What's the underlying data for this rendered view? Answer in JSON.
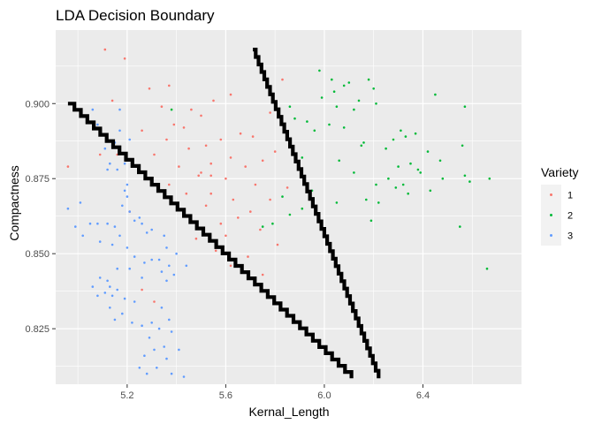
{
  "chart_data": {
    "type": "scatter",
    "title": "LDA Decision Boundary",
    "xlabel": "Kernal_Length",
    "ylabel": "Compactness",
    "xlim": [
      4.91,
      6.8
    ],
    "ylim": [
      0.8065,
      0.9245
    ],
    "x_ticks": [
      5.2,
      5.6,
      6.0,
      6.4
    ],
    "x_tick_labels": [
      "5.2",
      "5.6",
      "6.0",
      "6.4"
    ],
    "y_ticks": [
      0.825,
      0.85,
      0.875,
      0.9
    ],
    "y_tick_labels": [
      "0.825",
      "0.850",
      "0.875",
      "0.900"
    ],
    "grid": true,
    "legend": {
      "title": "Variety",
      "position": "right"
    },
    "series": [
      {
        "name": "1",
        "color": "#F8766D",
        "points": [
          [
            5.11,
            0.918
          ],
          [
            5.19,
            0.915
          ],
          [
            5.83,
            0.908
          ],
          [
            5.37,
            0.906
          ],
          [
            5.29,
            0.905
          ],
          [
            5.62,
            0.903
          ],
          [
            5.55,
            0.901
          ],
          [
            5.14,
            0.901
          ],
          [
            5.34,
            0.899
          ],
          [
            5.46,
            0.898
          ],
          [
            5.78,
            0.897
          ],
          [
            5.5,
            0.896
          ],
          [
            5.39,
            0.893
          ],
          [
            5.43,
            0.892
          ],
          [
            5.26,
            0.891
          ],
          [
            5.66,
            0.89
          ],
          [
            5.71,
            0.889
          ],
          [
            5.58,
            0.888
          ],
          [
            5.36,
            0.888
          ],
          [
            5.52,
            0.886
          ],
          [
            5.45,
            0.885
          ],
          [
            5.8,
            0.884
          ],
          [
            5.16,
            0.883
          ],
          [
            5.09,
            0.883
          ],
          [
            5.31,
            0.883
          ],
          [
            5.62,
            0.882
          ],
          [
            5.75,
            0.881
          ],
          [
            5.54,
            0.88
          ],
          [
            5.41,
            0.879
          ],
          [
            5.68,
            0.879
          ],
          [
            4.96,
            0.879
          ],
          [
            5.5,
            0.877
          ],
          [
            5.49,
            0.876
          ],
          [
            5.6,
            0.875
          ],
          [
            5.72,
            0.873
          ],
          [
            5.37,
            0.873
          ],
          [
            5.85,
            0.872
          ],
          [
            5.44,
            0.87
          ],
          [
            5.54,
            0.87
          ],
          [
            5.63,
            0.868
          ],
          [
            5.78,
            0.868
          ],
          [
            5.52,
            0.866
          ],
          [
            5.7,
            0.864
          ],
          [
            5.21,
            0.864
          ],
          [
            5.65,
            0.862
          ],
          [
            5.58,
            0.86
          ],
          [
            5.74,
            0.858
          ],
          [
            5.6,
            0.856
          ],
          [
            5.48,
            0.855
          ],
          [
            5.81,
            0.853
          ],
          [
            5.56,
            0.851
          ],
          [
            5.69,
            0.849
          ],
          [
            5.62,
            0.846
          ],
          [
            5.75,
            0.843
          ],
          [
            5.26,
            0.838
          ],
          [
            5.31,
            0.834
          ],
          [
            5.54,
            0.876
          ],
          [
            5.46,
            0.861
          ]
        ]
      },
      {
        "name": "2",
        "color": "#00BA38",
        "points": [
          [
            5.98,
            0.911
          ],
          [
            6.18,
            0.908
          ],
          [
            6.03,
            0.908
          ],
          [
            6.1,
            0.907
          ],
          [
            6.08,
            0.906
          ],
          [
            6.2,
            0.905
          ],
          [
            6.04,
            0.904
          ],
          [
            6.45,
            0.903
          ],
          [
            5.99,
            0.902
          ],
          [
            6.14,
            0.901
          ],
          [
            6.21,
            0.9
          ],
          [
            5.86,
            0.899
          ],
          [
            6.05,
            0.899
          ],
          [
            6.57,
            0.899
          ],
          [
            6.12,
            0.898
          ],
          [
            5.38,
            0.898
          ],
          [
            5.88,
            0.895
          ],
          [
            5.93,
            0.894
          ],
          [
            6.02,
            0.893
          ],
          [
            6.08,
            0.892
          ],
          [
            5.96,
            0.891
          ],
          [
            6.31,
            0.891
          ],
          [
            6.37,
            0.89
          ],
          [
            6.33,
            0.889
          ],
          [
            6.28,
            0.888
          ],
          [
            6.16,
            0.887
          ],
          [
            6.15,
            0.886
          ],
          [
            6.56,
            0.886
          ],
          [
            6.25,
            0.885
          ],
          [
            6.42,
            0.884
          ],
          [
            5.91,
            0.882
          ],
          [
            6.06,
            0.881
          ],
          [
            6.47,
            0.881
          ],
          [
            6.35,
            0.88
          ],
          [
            6.3,
            0.879
          ],
          [
            6.38,
            0.878
          ],
          [
            6.39,
            0.877
          ],
          [
            6.12,
            0.877
          ],
          [
            6.57,
            0.876
          ],
          [
            6.26,
            0.875
          ],
          [
            6.67,
            0.875
          ],
          [
            6.48,
            0.875
          ],
          [
            6.59,
            0.874
          ],
          [
            6.21,
            0.873
          ],
          [
            6.32,
            0.873
          ],
          [
            6.29,
            0.872
          ],
          [
            5.95,
            0.871
          ],
          [
            6.43,
            0.871
          ],
          [
            6.34,
            0.87
          ],
          [
            5.83,
            0.869
          ],
          [
            6.17,
            0.868
          ],
          [
            6.05,
            0.867
          ],
          [
            6.22,
            0.867
          ],
          [
            5.91,
            0.865
          ],
          [
            5.86,
            0.863
          ],
          [
            6.19,
            0.861
          ],
          [
            5.79,
            0.86
          ],
          [
            6.55,
            0.859
          ],
          [
            5.75,
            0.859
          ],
          [
            6.66,
            0.845
          ]
        ]
      },
      {
        "name": "3",
        "color": "#619CFF",
        "points": [
          [
            5.06,
            0.898
          ],
          [
            5.17,
            0.898
          ],
          [
            5.08,
            0.893
          ],
          [
            5.17,
            0.891
          ],
          [
            5.21,
            0.888
          ],
          [
            5.15,
            0.887
          ],
          [
            5.14,
            0.886
          ],
          [
            5.11,
            0.885
          ],
          [
            5.19,
            0.88
          ],
          [
            5.13,
            0.88
          ],
          [
            5.12,
            0.878
          ],
          [
            5.16,
            0.878
          ],
          [
            5.2,
            0.873
          ],
          [
            5.19,
            0.871
          ],
          [
            5.2,
            0.869
          ],
          [
            5.01,
            0.867
          ],
          [
            5.18,
            0.866
          ],
          [
            5.21,
            0.864
          ],
          [
            4.96,
            0.865
          ],
          [
            5.25,
            0.862
          ],
          [
            5.23,
            0.861
          ],
          [
            5.26,
            0.86
          ],
          [
            5.05,
            0.86
          ],
          [
            5.08,
            0.86
          ],
          [
            5.12,
            0.86
          ],
          [
            5.15,
            0.859
          ],
          [
            4.99,
            0.859
          ],
          [
            5.3,
            0.858
          ],
          [
            5.28,
            0.857
          ],
          [
            5.02,
            0.856
          ],
          [
            5.17,
            0.856
          ],
          [
            5.35,
            0.856
          ],
          [
            5.09,
            0.854
          ],
          [
            5.14,
            0.853
          ],
          [
            5.36,
            0.852
          ],
          [
            5.2,
            0.852
          ],
          [
            5.4,
            0.85
          ],
          [
            5.23,
            0.849
          ],
          [
            5.3,
            0.848
          ],
          [
            5.33,
            0.848
          ],
          [
            5.27,
            0.847
          ],
          [
            5.37,
            0.846
          ],
          [
            5.44,
            0.846
          ],
          [
            5.16,
            0.845
          ],
          [
            5.21,
            0.845
          ],
          [
            5.34,
            0.844
          ],
          [
            5.39,
            0.843
          ],
          [
            5.09,
            0.842
          ],
          [
            5.26,
            0.842
          ],
          [
            5.12,
            0.841
          ],
          [
            5.06,
            0.839
          ],
          [
            5.13,
            0.839
          ],
          [
            5.16,
            0.838
          ],
          [
            5.11,
            0.837
          ],
          [
            5.14,
            0.836
          ],
          [
            5.08,
            0.836
          ],
          [
            5.19,
            0.835
          ],
          [
            5.23,
            0.834
          ],
          [
            5.13,
            0.832
          ],
          [
            5.34,
            0.832
          ],
          [
            5.18,
            0.83
          ],
          [
            5.37,
            0.828
          ],
          [
            5.15,
            0.828
          ],
          [
            5.22,
            0.827
          ],
          [
            5.3,
            0.827
          ],
          [
            5.26,
            0.826
          ],
          [
            5.33,
            0.825
          ],
          [
            5.38,
            0.824
          ],
          [
            5.29,
            0.822
          ],
          [
            5.35,
            0.819
          ],
          [
            5.31,
            0.818
          ],
          [
            5.41,
            0.818
          ],
          [
            5.27,
            0.816
          ],
          [
            5.36,
            0.815
          ],
          [
            5.25,
            0.812
          ],
          [
            5.32,
            0.812
          ],
          [
            5.28,
            0.81
          ],
          [
            5.38,
            0.81
          ],
          [
            5.43,
            0.809
          ],
          [
            5.36,
            0.841
          ]
        ]
      }
    ],
    "boundaries": [
      {
        "name": "boundary-1-3",
        "points": [
          [
            4.96,
            0.9
          ],
          [
            6.11,
            0.8085
          ]
        ]
      },
      {
        "name": "boundary-1-2",
        "points": [
          [
            5.71,
            0.918
          ],
          [
            6.22,
            0.8085
          ]
        ]
      }
    ]
  }
}
